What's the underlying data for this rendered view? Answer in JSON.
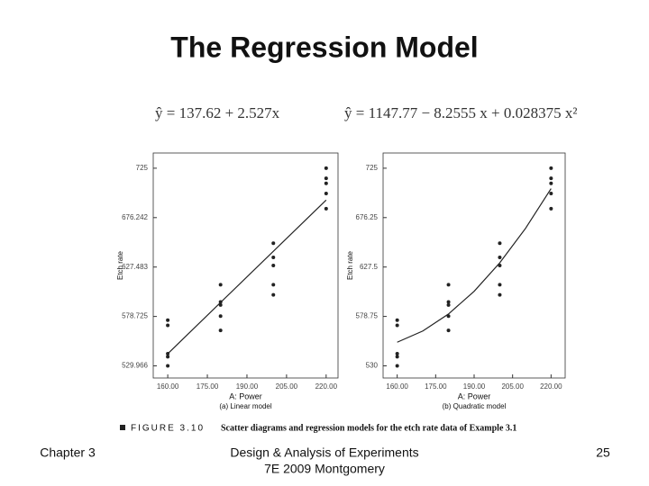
{
  "slide": {
    "title": "The Regression Model",
    "figure_label": "FIGURE 3.10",
    "figure_caption": "Scatter diagrams and regression models for the etch rate data of Example 3.1",
    "footer_left": "Chapter 3",
    "footer_center_1": "Design & Analysis of Experiments",
    "footer_center_2": "7E 2009 Montgomery",
    "page_number": "25"
  },
  "chart_data": [
    {
      "type": "scatter",
      "equation": "ŷ = 137.62 + 2.527x",
      "caption": "(a) Linear model",
      "x_label": "A: Power",
      "y_label": "Etch rate",
      "xlim": [
        154.5,
        224.5
      ],
      "ylim": [
        518,
        740
      ],
      "xticks": [
        {
          "value": 160,
          "label": "160.00"
        },
        {
          "value": 175,
          "label": "175.00"
        },
        {
          "value": 190,
          "label": "190.00"
        },
        {
          "value": 205,
          "label": "205.00"
        },
        {
          "value": 220,
          "label": "220.00"
        }
      ],
      "yticks": [
        529.966,
        578.725,
        627.483,
        676.242,
        725
      ],
      "series": [
        {
          "color": "#222222",
          "x": [
            160,
            160,
            160,
            160,
            160,
            180,
            180,
            180,
            180,
            180,
            200,
            200,
            200,
            200,
            200,
            220,
            220,
            220,
            220,
            220
          ],
          "values": [
            575,
            542,
            530,
            539,
            570,
            565,
            593,
            590,
            579,
            610,
            600,
            651,
            610,
            637,
            629,
            725,
            700,
            715,
            685,
            710
          ]
        }
      ],
      "fit": {
        "color": "#222222",
        "x": [
          160,
          220
        ],
        "values": [
          541.94,
          693.56
        ]
      }
    },
    {
      "type": "scatter",
      "equation": "ŷ = 1147.77 − 8.2555 x + 0.028375 x²",
      "caption": "(b) Quadratic model",
      "x_label": "A: Power",
      "y_label": "Etch rate",
      "xlim": [
        154.5,
        225.5
      ],
      "ylim": [
        518,
        740
      ],
      "xticks": [
        {
          "value": 160,
          "label": "160.00"
        },
        {
          "value": 175,
          "label": "175.00"
        },
        {
          "value": 190,
          "label": "190.00"
        },
        {
          "value": 205,
          "label": "205.00"
        },
        {
          "value": 220,
          "label": "220.00"
        }
      ],
      "yticks": [
        530,
        578.75,
        627.5,
        676.25,
        725
      ],
      "series": [
        {
          "color": "#222222",
          "x": [
            160,
            160,
            160,
            160,
            160,
            180,
            180,
            180,
            180,
            180,
            200,
            200,
            200,
            200,
            200,
            220,
            220,
            220,
            220,
            220
          ],
          "values": [
            575,
            542,
            530,
            539,
            570,
            565,
            593,
            590,
            579,
            610,
            600,
            651,
            610,
            637,
            629,
            725,
            700,
            715,
            685,
            710
          ]
        }
      ],
      "fit": {
        "color": "#222222",
        "x": [
          160,
          170,
          180,
          190,
          200,
          210,
          220
        ],
        "values": [
          553.29,
          564.38,
          581.13,
          603.57,
          631.67,
          665.46,
          704.91
        ]
      }
    }
  ]
}
